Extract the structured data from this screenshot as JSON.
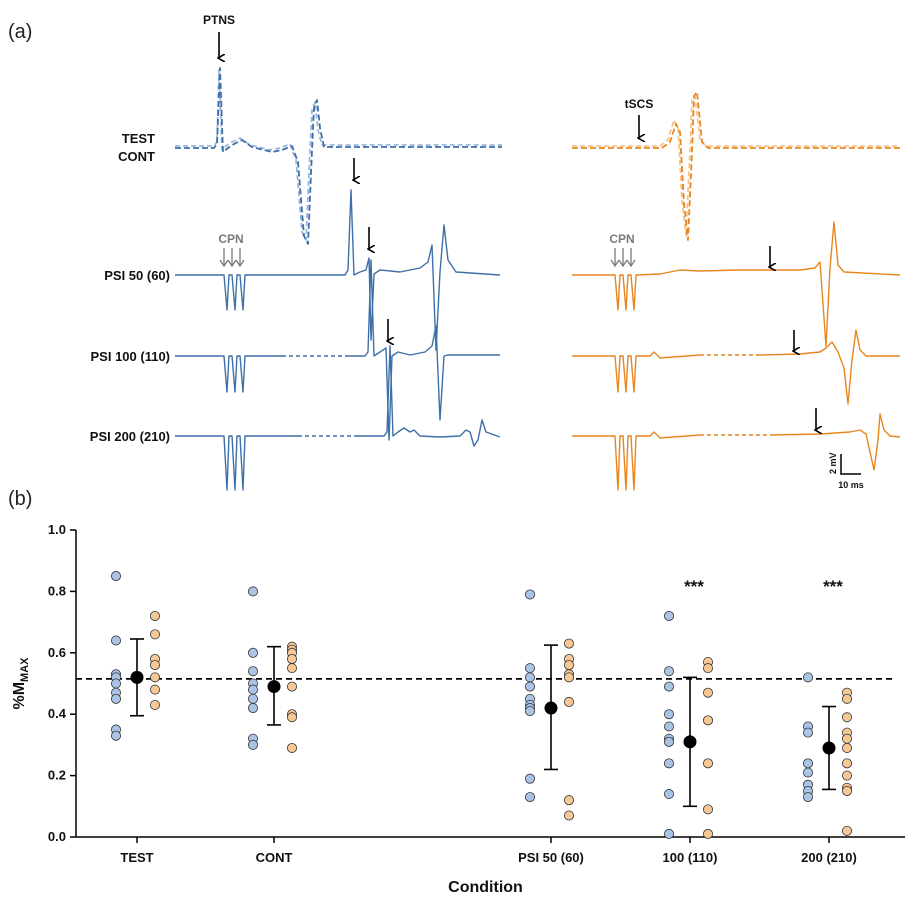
{
  "panel_a": {
    "label": "(a)",
    "colors": {
      "ptns": "#3d6fa8",
      "ptns_light": "#9bb8db",
      "tscs": "#e8861e",
      "tscs_light": "#f5c38e"
    },
    "traces": {
      "test_label": "TEST",
      "cont_label": "CONT",
      "psi50_label": "PSI 50 (60)",
      "psi100_label": "PSI 100 (110)",
      "psi200_label": "PSI 200 (210)"
    },
    "stim_labels": {
      "ptns": "PTNS",
      "tscs": "tSCS",
      "cpn_left": "CPN",
      "cpn_right": "CPN"
    },
    "scale_bar": {
      "amplitude": "2 mV",
      "time": "10 ms"
    }
  },
  "panel_b": {
    "label": "(b)"
  },
  "chart_data": {
    "type": "scatter",
    "title": "",
    "xlabel": "Condition",
    "ylabel": "%M",
    "ylabel_subscript": "MAX",
    "ylim": [
      0,
      1.0
    ],
    "yticks": [
      0.0,
      0.2,
      0.4,
      0.6,
      0.8,
      1.0
    ],
    "ytick_labels": [
      "0.0",
      "0.2",
      "0.4",
      "0.6",
      "0.8",
      "1.0"
    ],
    "reference_line": 0.515,
    "categories": [
      "TEST",
      "CONT",
      "PSI 50 (60)",
      "100 (110)",
      "200 (210)"
    ],
    "colors": {
      "ptns": "#aac4e6",
      "tscs": "#f6c896",
      "mean": "#000000"
    },
    "means": [
      0.52,
      0.49,
      0.42,
      0.31,
      0.29
    ],
    "sd_upper": [
      0.645,
      0.62,
      0.625,
      0.52,
      0.425
    ],
    "sd_lower": [
      0.395,
      0.365,
      0.22,
      0.1,
      0.155
    ],
    "significance": [
      "",
      "",
      "",
      "***",
      "***"
    ],
    "ptns_points": [
      [
        0.85,
        0.64,
        0.53,
        0.52,
        0.5,
        0.47,
        0.45,
        0.35,
        0.33
      ],
      [
        0.8,
        0.6,
        0.54,
        0.5,
        0.48,
        0.45,
        0.42,
        0.32,
        0.3
      ],
      [
        0.79,
        0.55,
        0.52,
        0.49,
        0.45,
        0.43,
        0.42,
        0.41,
        0.19,
        0.13
      ],
      [
        0.72,
        0.54,
        0.49,
        0.4,
        0.36,
        0.32,
        0.31,
        0.24,
        0.14,
        0.01
      ],
      [
        0.52,
        0.36,
        0.34,
        0.24,
        0.21,
        0.17,
        0.15,
        0.13
      ]
    ],
    "tscs_points": [
      [
        0.72,
        0.66,
        0.58,
        0.56,
        0.52,
        0.48,
        0.43
      ],
      [
        0.62,
        0.61,
        0.6,
        0.58,
        0.55,
        0.49,
        0.4,
        0.39,
        0.29
      ],
      [
        0.63,
        0.58,
        0.56,
        0.53,
        0.52,
        0.44,
        0.12,
        0.07
      ],
      [
        0.57,
        0.55,
        0.47,
        0.38,
        0.24,
        0.09,
        0.01
      ],
      [
        0.47,
        0.45,
        0.39,
        0.34,
        0.32,
        0.29,
        0.24,
        0.2,
        0.16,
        0.15,
        0.02
      ]
    ]
  }
}
